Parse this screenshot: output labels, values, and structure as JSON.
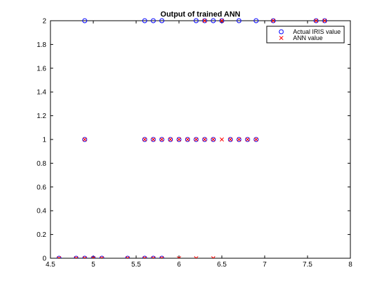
{
  "chart_data": {
    "type": "scatter",
    "title": "Output of trained ANN",
    "xlabel": "",
    "ylabel": "",
    "xlim": [
      4.5,
      8
    ],
    "ylim": [
      0,
      2
    ],
    "xticks": [
      "4.5",
      "5",
      "5.5",
      "6",
      "6.5",
      "7",
      "7.5",
      "8"
    ],
    "yticks": [
      "0",
      "0.2",
      "0.4",
      "0.6",
      "0.8",
      "1",
      "1.2",
      "1.4",
      "1.6",
      "1.8",
      "2"
    ],
    "grid": false,
    "legend_position": "top-right",
    "series": [
      {
        "name": "Actual IRIS value",
        "marker": "circle",
        "color": "#0000ff",
        "points": [
          [
            4.6,
            0
          ],
          [
            4.8,
            0
          ],
          [
            4.9,
            0
          ],
          [
            5.0,
            0
          ],
          [
            5.1,
            0
          ],
          [
            5.4,
            0
          ],
          [
            5.6,
            0
          ],
          [
            5.7,
            0
          ],
          [
            5.8,
            0
          ],
          [
            4.9,
            1
          ],
          [
            5.6,
            1
          ],
          [
            5.7,
            1
          ],
          [
            5.8,
            1
          ],
          [
            5.9,
            1
          ],
          [
            6.0,
            1
          ],
          [
            6.1,
            1
          ],
          [
            6.2,
            1
          ],
          [
            6.3,
            1
          ],
          [
            6.4,
            1
          ],
          [
            6.6,
            1
          ],
          [
            6.7,
            1
          ],
          [
            6.8,
            1
          ],
          [
            6.9,
            1
          ],
          [
            4.9,
            2
          ],
          [
            5.6,
            2
          ],
          [
            5.7,
            2
          ],
          [
            5.8,
            2
          ],
          [
            6.2,
            2
          ],
          [
            6.3,
            2
          ],
          [
            6.4,
            2
          ],
          [
            6.5,
            2
          ],
          [
            6.7,
            2
          ],
          [
            6.9,
            2
          ],
          [
            7.1,
            2
          ],
          [
            7.6,
            2
          ],
          [
            7.7,
            2
          ]
        ]
      },
      {
        "name": "ANN value",
        "marker": "x",
        "color": "#ff0000",
        "points": [
          [
            4.6,
            0
          ],
          [
            4.8,
            0
          ],
          [
            4.9,
            0
          ],
          [
            5.0,
            0
          ],
          [
            5.1,
            0
          ],
          [
            5.4,
            0
          ],
          [
            5.6,
            0
          ],
          [
            5.7,
            0
          ],
          [
            5.8,
            0
          ],
          [
            6.0,
            0
          ],
          [
            6.2,
            0
          ],
          [
            6.4,
            0
          ],
          [
            4.9,
            1
          ],
          [
            5.6,
            1
          ],
          [
            5.7,
            1
          ],
          [
            5.8,
            1
          ],
          [
            5.9,
            1
          ],
          [
            6.0,
            1
          ],
          [
            6.1,
            1
          ],
          [
            6.2,
            1
          ],
          [
            6.3,
            1
          ],
          [
            6.4,
            1
          ],
          [
            6.5,
            1
          ],
          [
            6.6,
            1
          ],
          [
            6.7,
            1
          ],
          [
            6.8,
            1
          ],
          [
            6.9,
            1
          ],
          [
            6.3,
            2
          ],
          [
            6.5,
            2
          ],
          [
            7.1,
            2
          ],
          [
            7.6,
            2
          ],
          [
            7.7,
            2
          ]
        ]
      }
    ]
  }
}
